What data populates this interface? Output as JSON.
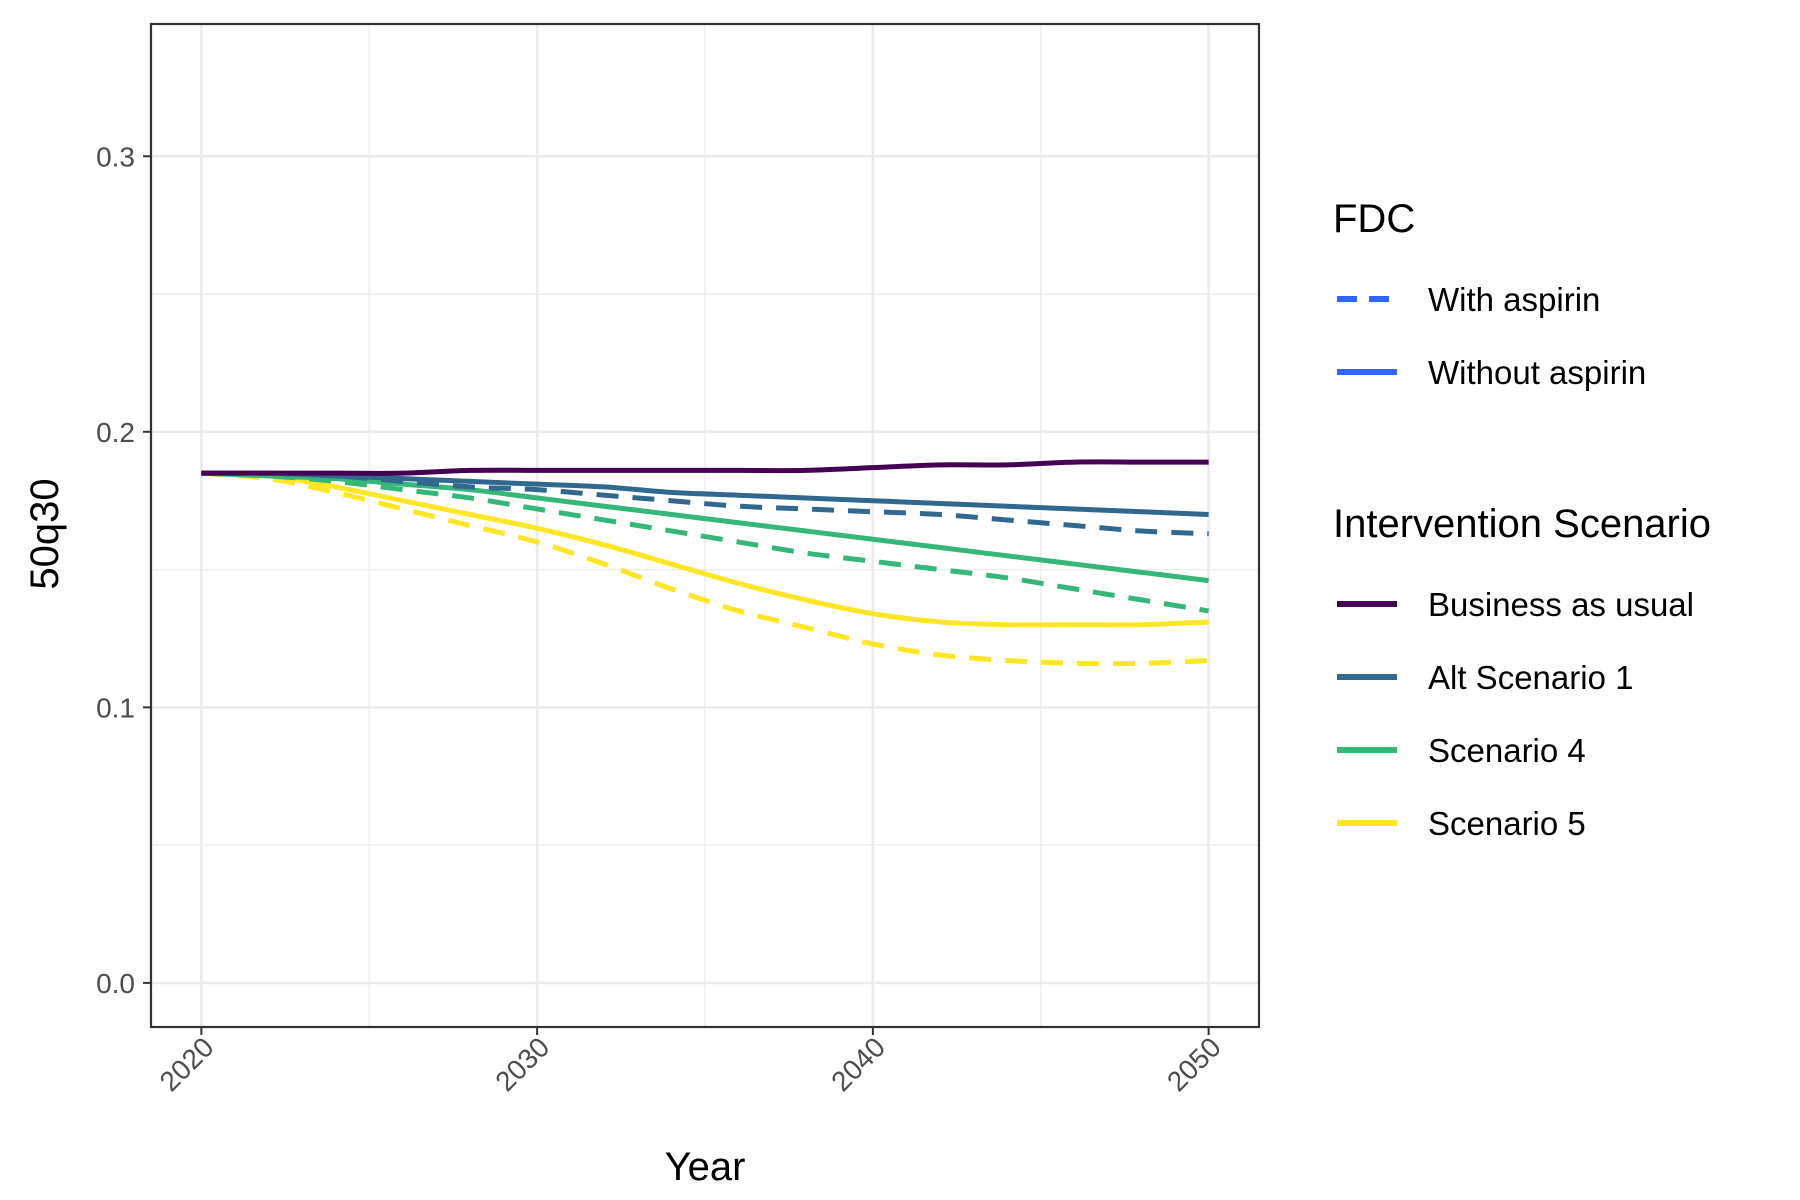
{
  "chart_data": {
    "type": "line",
    "xlabel": "Year",
    "ylabel": "50q30",
    "xlim": [
      2018.5,
      2051.5
    ],
    "ylim": [
      -0.016,
      0.348
    ],
    "x_ticks": [
      2020,
      2030,
      2040,
      2050
    ],
    "x_tick_labels": [
      "2020",
      "2030",
      "2040",
      "2050"
    ],
    "x_minor_ticks": [
      2025,
      2035,
      2045
    ],
    "y_ticks": [
      0.0,
      0.1,
      0.2,
      0.3
    ],
    "y_tick_labels": [
      "0.0",
      "0.1",
      "0.2",
      "0.3"
    ],
    "y_minor_ticks": [
      0.05,
      0.15,
      0.25
    ],
    "grid": true,
    "legend_position": "right",
    "legends": [
      {
        "title": "FDC",
        "entries": [
          {
            "label": "With aspirin",
            "color": "#3366ff",
            "dash": "dashed"
          },
          {
            "label": "Without aspirin",
            "color": "#3366ff",
            "dash": "solid"
          }
        ]
      },
      {
        "title": "Intervention Scenario",
        "entries": [
          {
            "label": "Business as usual",
            "color": "#440154"
          },
          {
            "label": "Alt Scenario 1",
            "color": "#31688e"
          },
          {
            "label": "Scenario 4",
            "color": "#35b779"
          },
          {
            "label": "Scenario 5",
            "color": "#fde725"
          }
        ]
      }
    ],
    "x": [
      2020,
      2022,
      2024,
      2026,
      2028,
      2030,
      2032,
      2034,
      2036,
      2038,
      2040,
      2042,
      2044,
      2046,
      2048,
      2050
    ],
    "series": [
      {
        "scenario": "Business as usual",
        "fdc": "Without aspirin",
        "color": "#440154",
        "values": [
          0.185,
          0.185,
          0.185,
          0.185,
          0.186,
          0.186,
          0.186,
          0.186,
          0.186,
          0.186,
          0.187,
          0.188,
          0.188,
          0.189,
          0.189,
          0.189
        ]
      },
      {
        "scenario": "Alt Scenario 1",
        "fdc": "Without aspirin",
        "color": "#31688e",
        "values": [
          0.185,
          0.185,
          0.184,
          0.183,
          0.182,
          0.181,
          0.18,
          0.178,
          0.177,
          0.176,
          0.175,
          0.174,
          0.173,
          0.172,
          0.171,
          0.17
        ]
      },
      {
        "scenario": "Alt Scenario 1",
        "fdc": "With aspirin",
        "color": "#31688e",
        "values": [
          0.185,
          0.185,
          0.184,
          0.182,
          0.18,
          0.179,
          0.177,
          0.175,
          0.173,
          0.172,
          0.171,
          0.17,
          0.168,
          0.166,
          0.164,
          0.163
        ]
      },
      {
        "scenario": "Scenario 4",
        "fdc": "Without aspirin",
        "color": "#35b779",
        "values": [
          0.185,
          0.184,
          0.183,
          0.181,
          0.179,
          0.176,
          0.173,
          0.17,
          0.167,
          0.164,
          0.161,
          0.158,
          0.155,
          0.152,
          0.149,
          0.146
        ]
      },
      {
        "scenario": "Scenario 4",
        "fdc": "With aspirin",
        "color": "#35b779",
        "values": [
          0.185,
          0.184,
          0.182,
          0.179,
          0.176,
          0.172,
          0.168,
          0.164,
          0.16,
          0.156,
          0.153,
          0.15,
          0.147,
          0.143,
          0.139,
          0.135
        ]
      },
      {
        "scenario": "Scenario 5",
        "fdc": "Without aspirin",
        "color": "#fde725",
        "values": [
          0.185,
          0.184,
          0.18,
          0.175,
          0.17,
          0.165,
          0.159,
          0.152,
          0.145,
          0.139,
          0.134,
          0.131,
          0.13,
          0.13,
          0.13,
          0.131
        ]
      },
      {
        "scenario": "Scenario 5",
        "fdc": "With aspirin",
        "color": "#fde725",
        "values": [
          0.185,
          0.183,
          0.178,
          0.172,
          0.166,
          0.16,
          0.152,
          0.143,
          0.135,
          0.129,
          0.123,
          0.119,
          0.117,
          0.116,
          0.116,
          0.117
        ]
      }
    ]
  }
}
